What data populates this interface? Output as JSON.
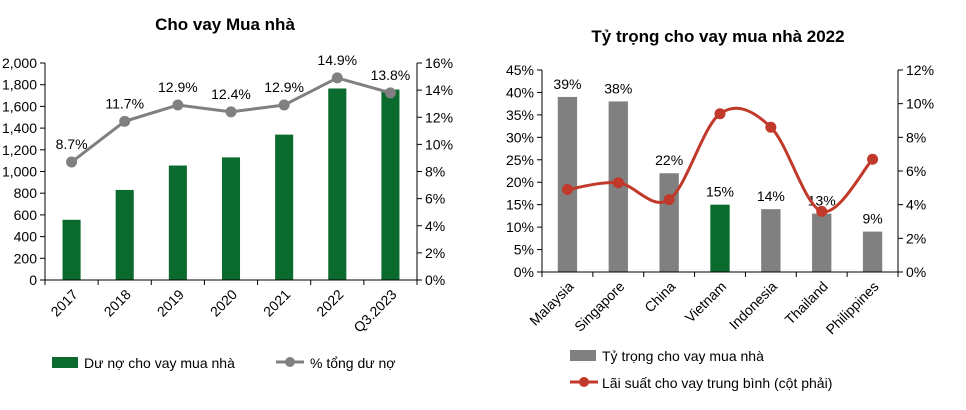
{
  "chart_data": [
    {
      "type": "bar",
      "title": "Cho vay Mua nhà",
      "categories": [
        "2017",
        "2018",
        "2019",
        "2020",
        "2021",
        "2022",
        "Q3.2023"
      ],
      "series": [
        {
          "name": "Dư nợ cho vay mua nhà",
          "type": "bar",
          "axis": "left",
          "color": "#0b6b2e",
          "values": [
            555,
            830,
            1055,
            1130,
            1340,
            1765,
            1755
          ]
        },
        {
          "name": "% tổng dư nợ",
          "type": "line",
          "axis": "right",
          "color": "#808080",
          "values": [
            8.7,
            11.7,
            12.9,
            12.4,
            12.9,
            14.9,
            13.8
          ],
          "labels": [
            "8.7%",
            "11.7%",
            "12.9%",
            "12.4%",
            "12.9%",
            "14.9%",
            "13.8%"
          ]
        }
      ],
      "ylim": [
        0,
        2000
      ],
      "y_ticks": [
        "0",
        "200",
        "400",
        "600",
        "800",
        "1,000",
        "1,200",
        "1,400",
        "1,600",
        "1,800",
        "2,000"
      ],
      "y2lim": [
        0,
        16
      ],
      "y2_ticks": [
        "0%",
        "2%",
        "4%",
        "6%",
        "8%",
        "10%",
        "12%",
        "14%",
        "16%"
      ],
      "legend": "bottom",
      "grid": false
    },
    {
      "type": "bar",
      "title": "Tỷ trọng cho vay mua nhà 2022",
      "categories": [
        "Malaysia",
        "Singapore",
        "China",
        "Vietnam",
        "Indonesia",
        "Thailand",
        "Philippines"
      ],
      "series": [
        {
          "name": "Tỷ trọng cho vay mua nhà",
          "type": "bar",
          "axis": "left",
          "color": "#808080",
          "highlight": {
            "category": "Vietnam",
            "color": "#0b6b2e"
          },
          "values": [
            39,
            38,
            22,
            15,
            14,
            13,
            9
          ],
          "labels": [
            "39%",
            "38%",
            "22%",
            "15%",
            "14%",
            "13%",
            "9%"
          ]
        },
        {
          "name": "Lãi suất cho vay trung bình (cột phải)",
          "type": "line",
          "axis": "right",
          "color": "#c0392b",
          "values": [
            4.9,
            5.3,
            4.3,
            9.4,
            8.6,
            3.6,
            6.7
          ]
        }
      ],
      "ylim": [
        0,
        45
      ],
      "y_ticks": [
        "0%",
        "5%",
        "10%",
        "15%",
        "20%",
        "25%",
        "30%",
        "35%",
        "40%",
        "45%"
      ],
      "y2lim": [
        0,
        12
      ],
      "y2_ticks": [
        "0%",
        "2%",
        "4%",
        "6%",
        "8%",
        "10%",
        "12%"
      ],
      "legend": "bottom",
      "grid": false
    }
  ]
}
